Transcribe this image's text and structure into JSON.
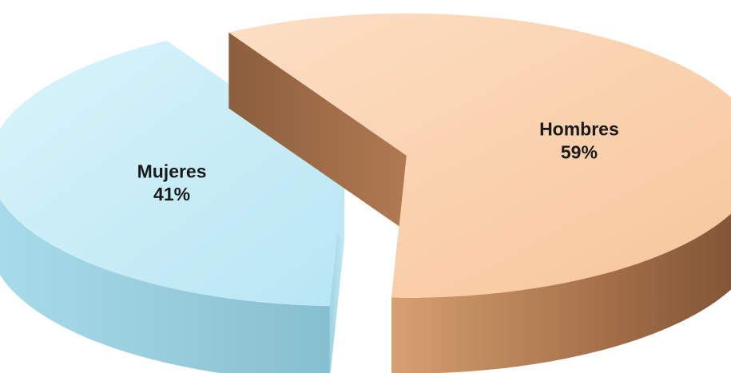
{
  "chart_data": {
    "type": "pie",
    "title": "",
    "legend": "none",
    "categories": [
      "Mujeres",
      "Hombres"
    ],
    "values": [
      41,
      59
    ],
    "labels": [
      "Mujeres\n41%",
      "Hombres\n59%"
    ],
    "colors": {
      "Mujeres": {
        "top": "#c4ecf6",
        "side": "#a6dbe8"
      },
      "Hombres": {
        "top": "#fcd3b0",
        "side": "#b6805a"
      }
    },
    "style": "3d-exploded"
  }
}
